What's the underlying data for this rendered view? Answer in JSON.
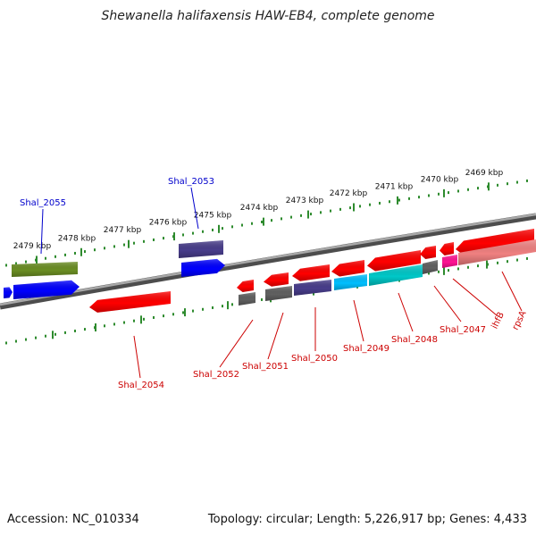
{
  "title": "Shewanella halifaxensis HAW-EB4, complete genome",
  "footer": {
    "accession": "Accession: NC_010334",
    "summary": "Topology: circular; Length: 5,226,917 bp; Genes: 4,433"
  },
  "scale": {
    "unit": "kbp",
    "labels": [
      "2469 kbp",
      "2470 kbp",
      "2471 kbp",
      "2472 kbp",
      "2473 kbp",
      "2474 kbp",
      "2475 kbp",
      "2476 kbp",
      "2477 kbp",
      "2478 kbp",
      "2479 kbp"
    ]
  },
  "colors": {
    "backbone": "#808080",
    "tick": "#2e8b2e",
    "forward_label": "#0000cc",
    "reverse_label": "#cc0000",
    "red": "#ff0000",
    "blue": "#0000ff",
    "olive": "#6b8e23",
    "slate": "#483d8b",
    "gray": "#606060",
    "cyan": "#00bfff",
    "teal": "#00c8c8",
    "magenta": "#ff1493",
    "pink": "#f08080"
  },
  "genes": [
    {
      "name": "Shal_2055",
      "strand": "+",
      "label_color": "#0000cc"
    },
    {
      "name": "Shal_2053",
      "strand": "+",
      "label_color": "#0000cc"
    },
    {
      "name": "Shal_2054",
      "strand": "-",
      "label_color": "#cc0000"
    },
    {
      "name": "Shal_2052",
      "strand": "-",
      "label_color": "#cc0000"
    },
    {
      "name": "Shal_2051",
      "strand": "-",
      "label_color": "#cc0000"
    },
    {
      "name": "Shal_2050",
      "strand": "-",
      "label_color": "#cc0000"
    },
    {
      "name": "Shal_2049",
      "strand": "-",
      "label_color": "#cc0000"
    },
    {
      "name": "Shal_2048",
      "strand": "-",
      "label_color": "#cc0000"
    },
    {
      "name": "Shal_2047",
      "strand": "-",
      "label_color": "#cc0000"
    },
    {
      "name": "ihfB",
      "strand": "-",
      "label_color": "#cc0000"
    },
    {
      "name": "rpsA",
      "strand": "-",
      "label_color": "#cc0000"
    }
  ]
}
